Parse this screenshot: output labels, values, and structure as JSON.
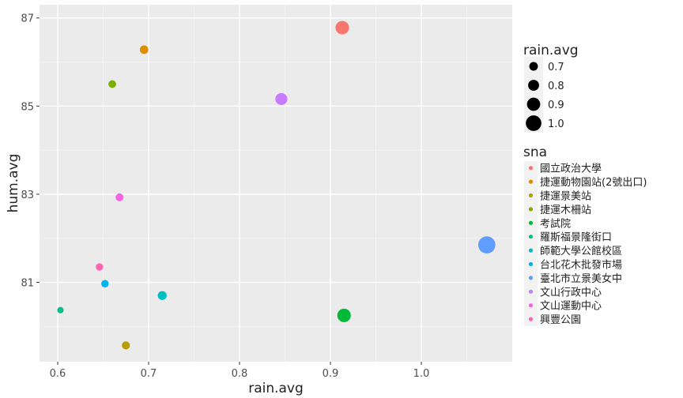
{
  "chart_data": {
    "type": "scatter",
    "xlabel": "rain.avg",
    "ylabel": "hum.avg",
    "xlim": [
      0.58,
      1.1
    ],
    "ylim": [
      79.2,
      87.3
    ],
    "x_ticks": [
      0.6,
      0.7,
      0.8,
      0.9,
      1.0
    ],
    "x_tick_labels": [
      "0.6",
      "0.7",
      "0.8",
      "0.9",
      "1.0"
    ],
    "y_ticks": [
      81,
      83,
      85,
      87
    ],
    "y_tick_labels": [
      "81",
      "83",
      "85",
      "87"
    ],
    "grid": true,
    "size_legend": {
      "title": "rain.avg",
      "values": [
        0.7,
        0.8,
        0.9,
        1.0
      ],
      "labels": [
        "0.7",
        "0.8",
        "0.9",
        "1.0"
      ]
    },
    "color_legend": {
      "title": "sna",
      "position": "right"
    },
    "series": [
      {
        "name": "國立政治大學",
        "color": "#F8766D",
        "x": 0.913,
        "y": 86.78
      },
      {
        "name": "捷運動物園站(2號出口)",
        "color": "#DE8C00",
        "x": 0.695,
        "y": 86.28
      },
      {
        "name": "捷運景美站",
        "color": "#B79F00",
        "x": 0.675,
        "y": 79.57
      },
      {
        "name": "捷運木柵站",
        "color": "#7CAE00",
        "x": 0.66,
        "y": 85.5
      },
      {
        "name": "考試院",
        "color": "#00BA38",
        "x": 0.915,
        "y": 80.25
      },
      {
        "name": "羅斯福景隆街口",
        "color": "#00C08B",
        "x": 0.603,
        "y": 80.37
      },
      {
        "name": "師範大學公館校區",
        "color": "#00BFC4",
        "x": 0.715,
        "y": 80.7
      },
      {
        "name": "台北花木批發市場",
        "color": "#00B4F0",
        "x": 0.652,
        "y": 80.97
      },
      {
        "name": "臺北市立景美女中",
        "color": "#619CFF",
        "x": 1.072,
        "y": 81.85
      },
      {
        "name": "文山行政中心",
        "color": "#C77CFF",
        "x": 0.846,
        "y": 85.16
      },
      {
        "name": "文山運動中心",
        "color": "#F564E3",
        "x": 0.668,
        "y": 82.93
      },
      {
        "name": "興豐公園",
        "color": "#FF64B0",
        "x": 0.646,
        "y": 81.35
      }
    ]
  }
}
